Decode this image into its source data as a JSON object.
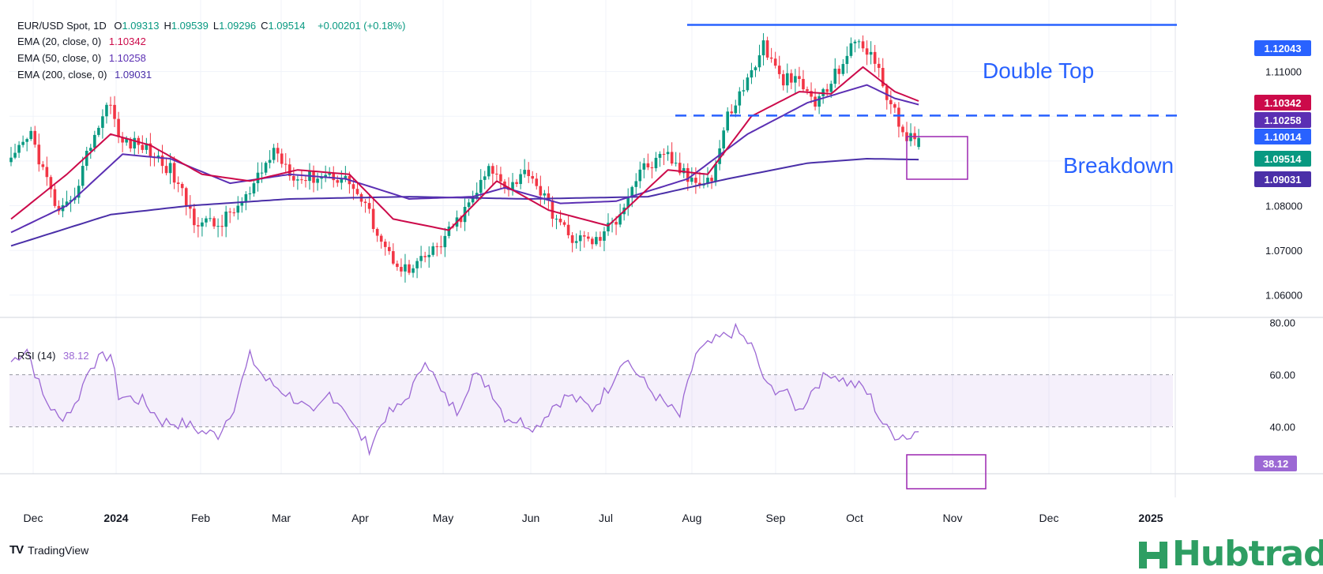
{
  "header": {
    "symbol": "EUR/USD Spot, 1D",
    "ohlc": [
      {
        "key": "O",
        "value": "1.09313"
      },
      {
        "key": "H",
        "value": "1.09539"
      },
      {
        "key": "L",
        "value": "1.09296"
      },
      {
        "key": "C",
        "value": "1.09514"
      }
    ],
    "change": "+0.00201 (+0.18%)",
    "ema20_label": "EMA (20, close, 0)",
    "ema20_value": "1.10342",
    "ema50_label": "EMA (50, close, 0)",
    "ema50_value": "1.10258",
    "ema200_label": "EMA (200, close, 0)",
    "ema200_value": "1.09031",
    "rsi_label": "RSI (14)",
    "rsi_value": "38.12"
  },
  "colors": {
    "up": "#089981",
    "down": "#f23645",
    "ema20": "#cc0a4a",
    "ema50": "#5b2fb3",
    "ema200": "#4a2fa8",
    "rsi": "#9c68d4",
    "annot": "#2962ff",
    "box": "#9c27b0"
  },
  "annotations": {
    "double_top": "Double Top",
    "breakdown": "Breakdown",
    "resistance_level": 1.12043,
    "neckline_level": 1.10014
  },
  "footer": {
    "brand": "TradingView",
    "logo_text": "TV",
    "watermark": "Hubtrading"
  },
  "chart_data": [
    {
      "type": "candlestick",
      "title": "EUR/USD Spot, 1D",
      "ylim": [
        1.055,
        1.126
      ],
      "y_ticks": [
        1.06,
        1.07,
        1.08,
        1.09,
        1.1,
        1.11
      ],
      "y_tick_labels": [
        "1.06000",
        "1.07000",
        "1.08000",
        "",
        "",
        "1.11000"
      ],
      "x_tick_labels": [
        "Dec",
        "2024",
        "Feb",
        "Mar",
        "Apr",
        "May",
        "Jun",
        "Jul",
        "Aug",
        "Sep",
        "Oct",
        "Nov",
        "Dec",
        "2025"
      ],
      "price_anchors": [
        [
          0,
          1.0895
        ],
        [
          5,
          1.096
        ],
        [
          8,
          1.088
        ],
        [
          12,
          1.078
        ],
        [
          15,
          1.08
        ],
        [
          20,
          1.094
        ],
        [
          25,
          1.104
        ],
        [
          27,
          1.0945
        ],
        [
          33,
          1.0935
        ],
        [
          40,
          1.088
        ],
        [
          46,
          1.077
        ],
        [
          52,
          1.0755
        ],
        [
          60,
          1.0825
        ],
        [
          66,
          1.0925
        ],
        [
          72,
          1.086
        ],
        [
          80,
          1.087
        ],
        [
          85,
          1.0855
        ],
        [
          90,
          1.078
        ],
        [
          95,
          1.069
        ],
        [
          100,
          1.065
        ],
        [
          108,
          1.0715
        ],
        [
          115,
          1.08
        ],
        [
          120,
          1.088
        ],
        [
          125,
          1.0845
        ],
        [
          130,
          1.088
        ],
        [
          135,
          1.08
        ],
        [
          140,
          1.073
        ],
        [
          147,
          1.072
        ],
        [
          152,
          1.077
        ],
        [
          158,
          1.088
        ],
        [
          165,
          1.091
        ],
        [
          170,
          1.086
        ],
        [
          176,
          1.086
        ],
        [
          180,
          1.1
        ],
        [
          185,
          1.108
        ],
        [
          189,
          1.116
        ],
        [
          193,
          1.1085
        ],
        [
          198,
          1.1075
        ],
        [
          202,
          1.103
        ],
        [
          205,
          1.106
        ],
        [
          210,
          1.114
        ],
        [
          213,
          1.117
        ],
        [
          216,
          1.114
        ],
        [
          220,
          1.105
        ],
        [
          223,
          1.098
        ],
        [
          225,
          1.096
        ],
        [
          227,
          1.094
        ],
        [
          228,
          1.0951
        ]
      ],
      "ema20_anchors": [
        [
          0,
          1.077
        ],
        [
          14,
          1.087
        ],
        [
          25,
          1.096
        ],
        [
          35,
          1.0935
        ],
        [
          48,
          1.087
        ],
        [
          60,
          1.0855
        ],
        [
          72,
          1.088
        ],
        [
          85,
          1.087
        ],
        [
          96,
          1.077
        ],
        [
          110,
          1.0745
        ],
        [
          122,
          1.0855
        ],
        [
          135,
          1.079
        ],
        [
          150,
          1.0755
        ],
        [
          165,
          1.088
        ],
        [
          175,
          1.087
        ],
        [
          186,
          1.1
        ],
        [
          198,
          1.1055
        ],
        [
          206,
          1.105
        ],
        [
          214,
          1.111
        ],
        [
          222,
          1.1055
        ],
        [
          228,
          1.1034
        ]
      ],
      "ema50_anchors": [
        [
          0,
          1.074
        ],
        [
          14,
          1.08
        ],
        [
          28,
          1.0915
        ],
        [
          40,
          1.0905
        ],
        [
          55,
          1.085
        ],
        [
          70,
          1.087
        ],
        [
          84,
          1.086
        ],
        [
          100,
          1.0815
        ],
        [
          116,
          1.082
        ],
        [
          124,
          1.084
        ],
        [
          138,
          1.0805
        ],
        [
          152,
          1.081
        ],
        [
          170,
          1.086
        ],
        [
          185,
          1.096
        ],
        [
          200,
          1.103
        ],
        [
          215,
          1.107
        ],
        [
          222,
          1.104
        ],
        [
          228,
          1.1026
        ]
      ],
      "ema200_anchors": [
        [
          0,
          1.071
        ],
        [
          25,
          1.078
        ],
        [
          45,
          1.08
        ],
        [
          70,
          1.0815
        ],
        [
          100,
          1.082
        ],
        [
          130,
          1.0815
        ],
        [
          160,
          1.082
        ],
        [
          180,
          1.086
        ],
        [
          200,
          1.0895
        ],
        [
          215,
          1.0905
        ],
        [
          228,
          1.0903
        ]
      ],
      "last": {
        "open": 1.09313,
        "high": 1.09539,
        "low": 1.09296,
        "close": 1.09514
      },
      "price_labels": [
        {
          "value": 1.12043,
          "text": "1.12043",
          "series": "annot"
        },
        {
          "value": 1.10342,
          "text": "1.10342",
          "series": "ema20"
        },
        {
          "value": 1.10258,
          "text": "1.10258",
          "series": "ema50"
        },
        {
          "value": 1.10014,
          "text": "1.10014",
          "series": "annot"
        },
        {
          "value": 1.09514,
          "text": "1.09514",
          "series": "up"
        },
        {
          "value": 1.09031,
          "text": "1.09031",
          "series": "ema200"
        }
      ]
    },
    {
      "type": "line",
      "title": "RSI (14)",
      "ylim": [
        22,
        82
      ],
      "y_ticks": [
        80,
        60,
        40
      ],
      "y_tick_labels": [
        "80.00",
        "60.00",
        "40.00"
      ],
      "band": [
        40,
        60
      ],
      "anchors": [
        [
          0,
          65
        ],
        [
          4,
          70
        ],
        [
          8,
          52
        ],
        [
          12,
          43
        ],
        [
          16,
          48
        ],
        [
          20,
          64
        ],
        [
          25,
          68
        ],
        [
          27,
          52
        ],
        [
          33,
          50
        ],
        [
          38,
          42
        ],
        [
          44,
          41
        ],
        [
          48,
          38
        ],
        [
          52,
          37
        ],
        [
          56,
          48
        ],
        [
          60,
          67
        ],
        [
          64,
          58
        ],
        [
          68,
          54
        ],
        [
          72,
          50
        ],
        [
          76,
          44
        ],
        [
          80,
          53
        ],
        [
          84,
          47
        ],
        [
          86,
          40
        ],
        [
          90,
          32
        ],
        [
          94,
          44
        ],
        [
          98,
          48
        ],
        [
          102,
          58
        ],
        [
          104,
          67
        ],
        [
          108,
          53
        ],
        [
          112,
          46
        ],
        [
          116,
          60
        ],
        [
          120,
          56
        ],
        [
          124,
          44
        ],
        [
          128,
          42
        ],
        [
          132,
          40
        ],
        [
          136,
          48
        ],
        [
          140,
          52
        ],
        [
          146,
          47
        ],
        [
          150,
          55
        ],
        [
          154,
          67
        ],
        [
          160,
          55
        ],
        [
          164,
          49
        ],
        [
          168,
          44
        ],
        [
          172,
          68
        ],
        [
          177,
          73
        ],
        [
          182,
          77
        ],
        [
          186,
          71
        ],
        [
          190,
          55
        ],
        [
          194,
          54
        ],
        [
          198,
          46
        ],
        [
          202,
          56
        ],
        [
          206,
          61
        ],
        [
          210,
          57
        ],
        [
          214,
          55
        ],
        [
          216,
          51
        ],
        [
          218,
          44
        ],
        [
          220,
          39
        ],
        [
          222,
          37
        ],
        [
          224,
          37
        ],
        [
          226,
          36
        ],
        [
          227,
          38
        ],
        [
          228,
          38.12
        ]
      ],
      "rsi_label_value": "38.12"
    }
  ]
}
